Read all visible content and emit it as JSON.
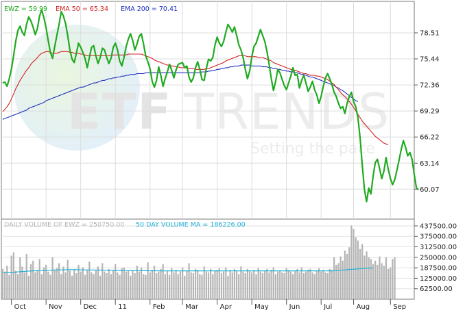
{
  "chart_data": [
    {
      "type": "line",
      "panel": "price",
      "legend": [
        {
          "text": "EWZ = 59.99",
          "color": "#1faa1f"
        },
        {
          "text": "EMA 50 = 65.34",
          "color": "#d61f1f"
        },
        {
          "text": "EMA 200 = 70.41",
          "color": "#1f2fbf"
        }
      ],
      "x_labels": [
        "Oct",
        "Nov",
        "Dec",
        "11",
        "Feb",
        "Mar",
        "Apr",
        "May",
        "Jun",
        "Jul",
        "Aug",
        "Sep"
      ],
      "x_label_idx": [
        10,
        26,
        42,
        58,
        74,
        89,
        105,
        121,
        137,
        153,
        168,
        185
      ],
      "x_range": [
        0,
        190
      ],
      "y_ticks": [
        "78.51",
        "75.44",
        "72.36",
        "69.29",
        "66.22",
        "63.14",
        "60.07"
      ],
      "ylim": [
        56.7,
        81.9
      ],
      "grid": true,
      "series": [
        {
          "name": "EWZ",
          "color": "#1faa1f",
          "values": [
            72.6,
            72.7,
            72.2,
            73.1,
            74.2,
            75.8,
            77.5,
            78.8,
            79.3,
            78.6,
            78.2,
            79.5,
            80.4,
            79.9,
            79.2,
            78.3,
            79.0,
            80.5,
            81.2,
            80.3,
            79.1,
            77.6,
            76.2,
            75.5,
            76.9,
            78.2,
            79.5,
            81.0,
            80.5,
            79.6,
            78.2,
            76.5,
            75.4,
            75.0,
            76.1,
            77.3,
            76.8,
            76.2,
            75.5,
            74.4,
            75.6,
            76.8,
            77.0,
            75.8,
            74.9,
            75.6,
            76.7,
            76.5,
            75.6,
            74.9,
            75.5,
            76.8,
            77.3,
            76.5,
            75.2,
            74.6,
            75.6,
            76.9,
            77.8,
            78.4,
            77.6,
            76.5,
            77.2,
            78.1,
            78.4,
            77.2,
            75.8,
            75.1,
            74.3,
            72.8,
            72.1,
            72.9,
            74.5,
            73.5,
            72.2,
            73.1,
            73.9,
            74.8,
            74.1,
            73.2,
            74.1,
            74.8,
            74.9,
            75.0,
            74.4,
            74.6,
            73.3,
            72.7,
            73.2,
            74.4,
            75.1,
            74.2,
            73.0,
            72.9,
            74.3,
            75.4,
            75.2,
            75.6,
            77.1,
            78.0,
            77.3,
            76.9,
            77.5,
            78.6,
            79.5,
            79.1,
            78.6,
            79.2,
            78.2,
            77.1,
            76.5,
            75.6,
            74.2,
            73.1,
            74.0,
            75.7,
            76.9,
            77.3,
            78.1,
            78.9,
            78.2,
            77.5,
            76.3,
            74.8,
            73.1,
            71.7,
            72.8,
            74.2,
            73.8,
            73.0,
            72.3,
            71.8,
            72.6,
            73.4,
            74.4,
            73.5,
            73.6,
            72.0,
            72.9,
            73.5,
            72.6,
            71.6,
            72.1,
            72.8,
            71.8,
            71.2,
            70.2,
            71.0,
            72.2,
            73.2,
            73.7,
            73.1,
            72.4,
            71.5,
            71.0,
            70.2,
            69.6,
            69.8,
            69.0,
            70.2,
            71.0,
            71.5,
            70.4,
            69.8,
            68.5,
            66.1,
            62.9,
            60.0,
            58.6,
            60.2,
            59.5,
            61.6,
            63.2,
            63.6,
            62.5,
            61.3,
            62.2,
            63.8,
            62.4,
            61.3,
            60.6,
            61.2,
            62.3,
            63.5,
            64.8,
            65.8,
            65.0,
            64.0,
            64.4,
            63.6,
            61.8,
            60.2,
            60.0
          ],
          "stroke_width": 2.2
        },
        {
          "name": "EMA 50",
          "color": "#d61f1f",
          "values": [
            69.2,
            69.5,
            69.8,
            70.2,
            70.7,
            71.3,
            71.9,
            72.4,
            72.9,
            73.3,
            73.7,
            74.1,
            74.4,
            74.8,
            75.1,
            75.3,
            75.6,
            75.9,
            76.1,
            76.2,
            76.3,
            76.3,
            76.2,
            76.1,
            76.1,
            76.1,
            76.2,
            76.3,
            76.3,
            76.3,
            76.3,
            76.2,
            76.2,
            76.1,
            76.1,
            76.1,
            76.0,
            76.0,
            75.9,
            75.8,
            75.8,
            75.8,
            75.8,
            75.8,
            75.8,
            75.8,
            75.8,
            75.8,
            75.8,
            75.8,
            75.8,
            75.9,
            75.9,
            75.9,
            75.9,
            75.9,
            75.9,
            75.9,
            76.0,
            76.0,
            76.0,
            76.0,
            76.0,
            76.0,
            76.0,
            75.9,
            75.8,
            75.7,
            75.6,
            75.5,
            75.3,
            75.2,
            75.1,
            75.0,
            74.9,
            74.8,
            74.7,
            74.7,
            74.6,
            74.6,
            74.5,
            74.5,
            74.4,
            74.4,
            74.4,
            74.4,
            74.3,
            74.3,
            74.3,
            74.2,
            74.2,
            74.2,
            74.2,
            74.2,
            74.3,
            74.3,
            74.4,
            74.5,
            74.6,
            74.7,
            74.8,
            74.9,
            75.0,
            75.2,
            75.3,
            75.4,
            75.5,
            75.6,
            75.7,
            75.8,
            75.8,
            75.8,
            75.8,
            75.7,
            75.7,
            75.7,
            75.7,
            75.7,
            75.6,
            75.6,
            75.6,
            75.5,
            75.4,
            75.3,
            75.2,
            75.0,
            74.9,
            74.8,
            74.7,
            74.6,
            74.5,
            74.4,
            74.3,
            74.2,
            74.1,
            74.1,
            74.0,
            73.9,
            73.8,
            73.7,
            73.7,
            73.6,
            73.5,
            73.5,
            73.5,
            73.4,
            73.4,
            73.3,
            73.2,
            73.1,
            73.0,
            72.8,
            72.6,
            72.4,
            72.1,
            71.8,
            71.5,
            71.2,
            71.0,
            70.7,
            70.4,
            70.1,
            69.7,
            69.3,
            68.9,
            68.5,
            68.1,
            67.8,
            67.5,
            67.2,
            66.9,
            66.6,
            66.3,
            66.1,
            65.9,
            65.7,
            65.5,
            65.4,
            65.3
          ],
          "stroke_width": 1.1,
          "x_start": 0
        },
        {
          "name": "EMA 200",
          "color": "#1f2fbf",
          "values": [
            68.3,
            68.4,
            68.5,
            68.6,
            68.7,
            68.8,
            68.9,
            69.0,
            69.1,
            69.2,
            69.3,
            69.4,
            69.6,
            69.7,
            69.8,
            69.9,
            70.0,
            70.1,
            70.2,
            70.3,
            70.5,
            70.6,
            70.7,
            70.8,
            70.9,
            71.0,
            71.1,
            71.2,
            71.3,
            71.4,
            71.5,
            71.6,
            71.7,
            71.8,
            71.9,
            72.0,
            72.1,
            72.1,
            72.2,
            72.3,
            72.4,
            72.5,
            72.6,
            72.6,
            72.7,
            72.8,
            72.9,
            72.9,
            73.0,
            73.1,
            73.1,
            73.2,
            73.2,
            73.3,
            73.3,
            73.4,
            73.4,
            73.5,
            73.5,
            73.6,
            73.6,
            73.6,
            73.7,
            73.7,
            73.7,
            73.7,
            73.8,
            73.8,
            73.8,
            73.8,
            73.8,
            73.8,
            73.8,
            73.8,
            73.8,
            73.8,
            73.8,
            73.8,
            73.8,
            73.8,
            73.8,
            73.8,
            73.8,
            73.8,
            73.8,
            73.8,
            73.8,
            73.8,
            73.8,
            73.8,
            73.8,
            73.8,
            73.9,
            73.9,
            73.9,
            74.0,
            74.0,
            74.1,
            74.1,
            74.2,
            74.2,
            74.3,
            74.3,
            74.4,
            74.4,
            74.5,
            74.5,
            74.6,
            74.6,
            74.6,
            74.7,
            74.7,
            74.7,
            74.7,
            74.7,
            74.6,
            74.6,
            74.6,
            74.6,
            74.6,
            74.5,
            74.5,
            74.5,
            74.4,
            74.4,
            74.3,
            74.3,
            74.2,
            74.2,
            74.1,
            74.1,
            74.0,
            74.0,
            73.9,
            73.9,
            73.8,
            73.8,
            73.7,
            73.6,
            73.6,
            73.5,
            73.4,
            73.3,
            73.3,
            73.2,
            73.1,
            73.0,
            72.9,
            72.8,
            72.7,
            72.6,
            72.5,
            72.4,
            72.3,
            72.1,
            72.0,
            71.8,
            71.7,
            71.5,
            71.3,
            71.1,
            70.9,
            70.7,
            70.5,
            70.4
          ],
          "stroke_width": 1.1,
          "x_start": 0
        }
      ]
    },
    {
      "type": "bar",
      "panel": "volume",
      "legend": [
        {
          "text": "DAILY VOLUME OF EWZ = 250750.00",
          "color": "#b4b4b4"
        },
        {
          "text": "50 DAY VOLUME MA = 186226.00",
          "color": "#1fb0d6"
        }
      ],
      "y_ticks": [
        "437500.00",
        "375000.00",
        "312500.00",
        "250000.00",
        "187500.00",
        "125000.00",
        "62500.00"
      ],
      "y_tick_values": [
        437500,
        375000,
        312500,
        250000,
        187500,
        125000,
        62500
      ],
      "ylim": [
        0,
        470000
      ],
      "bar_color": "#b4b4b4",
      "ma_color": "#1fb0d6",
      "volume": [
        180000,
        165000,
        200000,
        145000,
        260000,
        280000,
        170000,
        150000,
        250000,
        195000,
        160000,
        270000,
        140000,
        210000,
        230000,
        160000,
        175000,
        240000,
        150000,
        190000,
        205000,
        165000,
        145000,
        250000,
        175000,
        185000,
        215000,
        150000,
        195000,
        160000,
        235000,
        170000,
        140000,
        180000,
        155000,
        205000,
        165000,
        190000,
        145000,
        175000,
        225000,
        160000,
        150000,
        170000,
        195000,
        140000,
        215000,
        165000,
        155000,
        180000,
        150000,
        170000,
        210000,
        160000,
        145000,
        185000,
        190000,
        165000,
        170000,
        140000,
        175000,
        155000,
        200000,
        165000,
        190000,
        150000,
        145000,
        220000,
        160000,
        175000,
        200000,
        155000,
        165000,
        180000,
        210000,
        150000,
        170000,
        145000,
        185000,
        160000,
        175000,
        150000,
        165000,
        190000,
        140000,
        170000,
        215000,
        160000,
        155000,
        180000,
        175000,
        150000,
        145000,
        195000,
        165000,
        160000,
        180000,
        150000,
        170000,
        175000,
        185000,
        155000,
        165000,
        190000,
        140000,
        175000,
        160000,
        180000,
        170000,
        150000,
        195000,
        165000,
        155000,
        180000,
        170000,
        160000,
        175000,
        150000,
        185000,
        165000,
        155000,
        170000,
        180000,
        160000,
        175000,
        190000,
        150000,
        165000,
        170000,
        160000,
        155000,
        185000,
        175000,
        165000,
        150000,
        170000,
        180000,
        160000,
        190000,
        155000,
        165000,
        175000,
        180000,
        160000,
        150000,
        170000,
        185000,
        165000,
        175000,
        160000,
        155000,
        180000,
        175000,
        250000,
        205000,
        215000,
        255000,
        230000,
        290000,
        270000,
        310000,
        440000,
        420000,
        370000,
        350000,
        300000,
        330000,
        260000,
        285000,
        250000,
        240000,
        210000,
        230000,
        205000,
        255000,
        215000,
        200000,
        250000,
        180000,
        190000,
        240000,
        250750
      ],
      "volume_ma": [
        158000,
        158000,
        159000,
        159000,
        160000,
        161000,
        162000,
        163000,
        164000,
        165000,
        166000,
        167000,
        168000,
        168500,
        169000,
        169500,
        170000,
        170500,
        171000,
        171500,
        172000,
        172500,
        173000,
        173500,
        174000,
        174500,
        175000,
        175000,
        175500,
        175500,
        176000,
        176000,
        176000,
        176000,
        176000,
        176000,
        175500,
        175500,
        175000,
        175000,
        174500,
        174500,
        174000,
        174000,
        174000,
        173500,
        173500,
        173000,
        173000,
        172500,
        172500,
        172000,
        172000,
        172000,
        171500,
        171500,
        171000,
        171000,
        171000,
        170500,
        170500,
        170500,
        170000,
        170000,
        170000,
        170000,
        170000,
        169500,
        169500,
        169500,
        169500,
        169500,
        169500,
        169000,
        169000,
        169000,
        169000,
        169000,
        169000,
        169000,
        169000,
        169000,
        169000,
        169000,
        169000,
        169000,
        169000,
        169000,
        169000,
        169000,
        169000,
        169000,
        169000,
        169000,
        169000,
        169000,
        169000,
        169000,
        169000,
        169000,
        169000,
        169000,
        169000,
        169000,
        169000,
        169000,
        169000,
        169000,
        169000,
        169000,
        169000,
        169000,
        169000,
        169000,
        169000,
        169000,
        169000,
        169000,
        169000,
        169000,
        169000,
        169000,
        169000,
        169000,
        169000,
        169000,
        169000,
        169000,
        169000,
        169000,
        169000,
        169000,
        169000,
        169000,
        169000,
        169000,
        169000,
        169000,
        169000,
        169000,
        169000,
        169000,
        169000,
        169000,
        169000,
        169000,
        169000,
        169000,
        169000,
        169000,
        169000,
        169000,
        169000,
        170000,
        171000,
        172000,
        173000,
        174000,
        175000,
        176000,
        177000,
        178000,
        179000,
        180000,
        181000,
        182000,
        183000,
        184000,
        185000,
        185500,
        186000,
        186226
      ]
    }
  ],
  "watermark": {
    "brand": "ETF TRENDS",
    "tagline": "Setting the pace"
  }
}
